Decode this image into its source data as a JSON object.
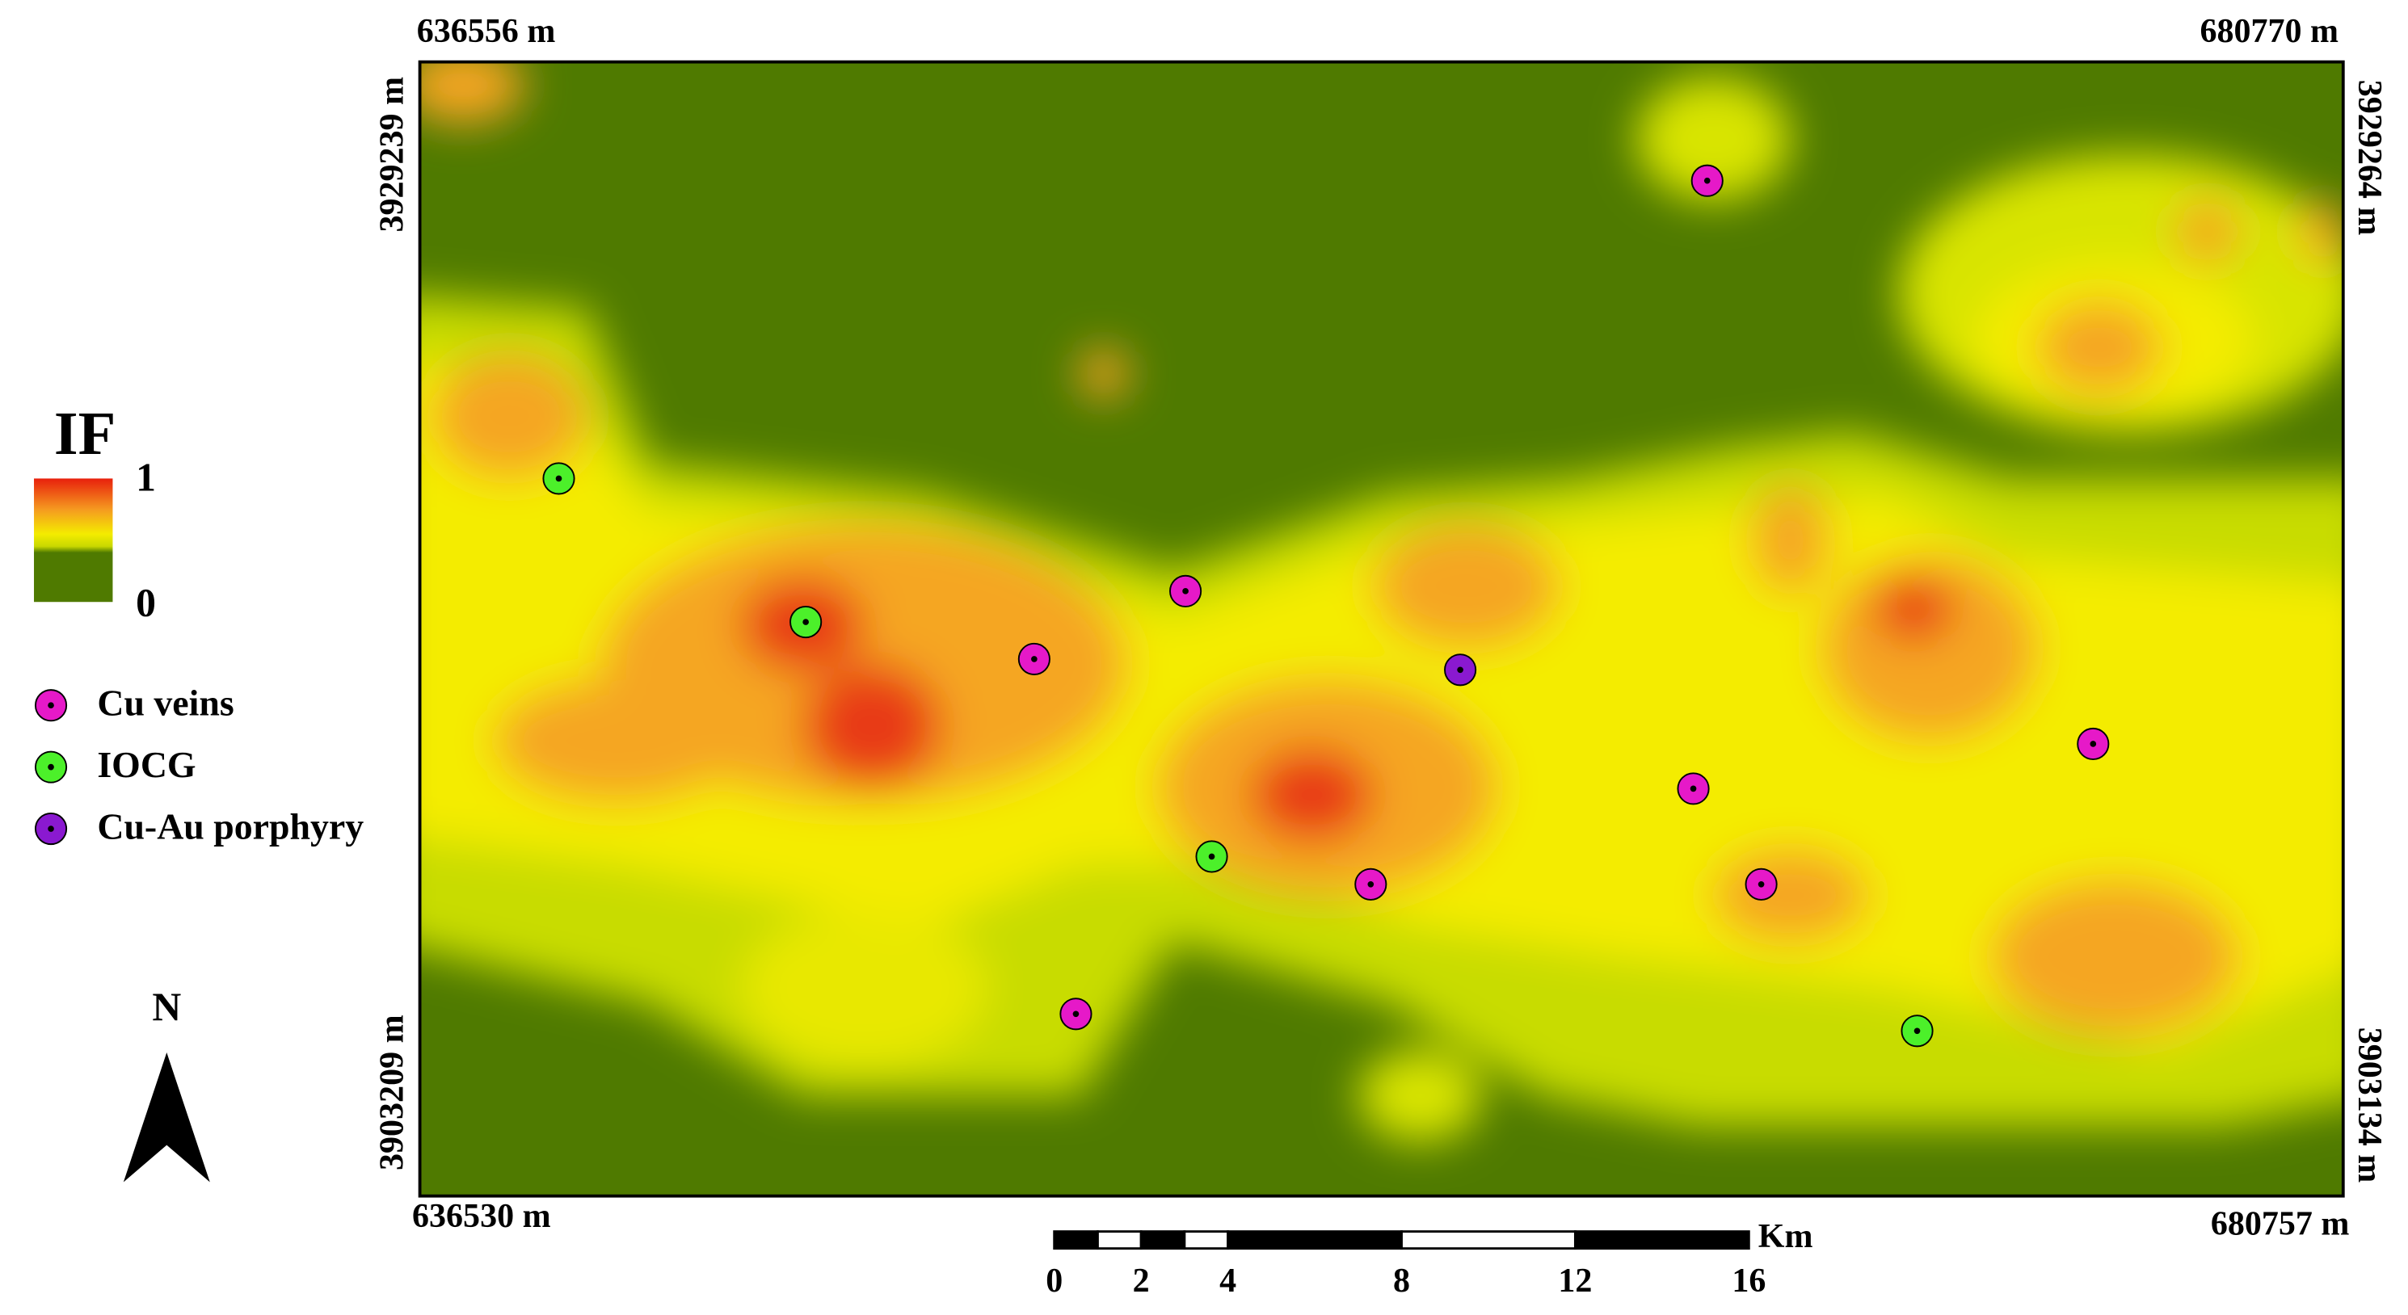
{
  "legend": {
    "title": "IF",
    "max": 1,
    "min": 0,
    "items": [
      {
        "label": "Cu veins",
        "color": "#e619c8"
      },
      {
        "label": "IOCG",
        "color": "#4cf02a"
      },
      {
        "label": "Cu-Au porphyry",
        "color": "#8a19d0"
      }
    ]
  },
  "north": "N",
  "coords": {
    "top_left": "636556 m",
    "top_right": "680770 m",
    "bottom_left": "636530 m",
    "bottom_right": "680757 m",
    "left_top": "3929239 m",
    "left_bottom": "3903209 m",
    "right_top": "3929264 m",
    "right_bottom": "3903134 m"
  },
  "scale_bar": {
    "unit": "Km",
    "ticks": [
      0,
      2,
      4,
      8,
      12,
      16
    ]
  }
}
